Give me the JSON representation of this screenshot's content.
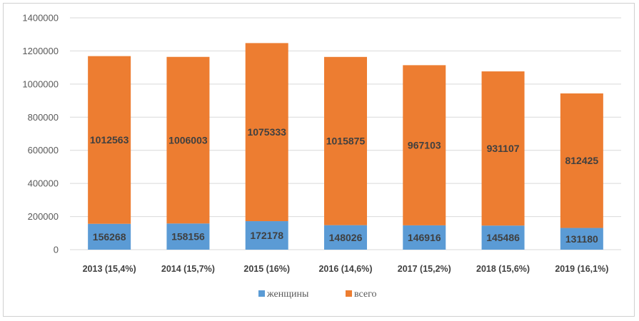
{
  "chart_data": {
    "type": "bar",
    "stacked": true,
    "categories": [
      "2013 (15,4%)",
      "2014 (15,7%)",
      "2015   (16%)",
      "2016 (14,6%)",
      "2017 (15,2%)",
      "2018 (15,6%)",
      "2019 (16,1%)"
    ],
    "series": [
      {
        "name": "женщины",
        "color": "#5b9bd5",
        "values": [
          156268,
          158156,
          172178,
          148026,
          146916,
          145486,
          131180
        ]
      },
      {
        "name": "всего",
        "color": "#ed7d31",
        "values": [
          1012563,
          1006003,
          1075333,
          1015875,
          967103,
          931107,
          812425
        ]
      }
    ],
    "ylim": [
      0,
      1400000
    ],
    "yticks": [
      0,
      200000,
      400000,
      600000,
      800000,
      1000000,
      1200000,
      1400000
    ],
    "grid": true,
    "legend_position": "bottom"
  }
}
